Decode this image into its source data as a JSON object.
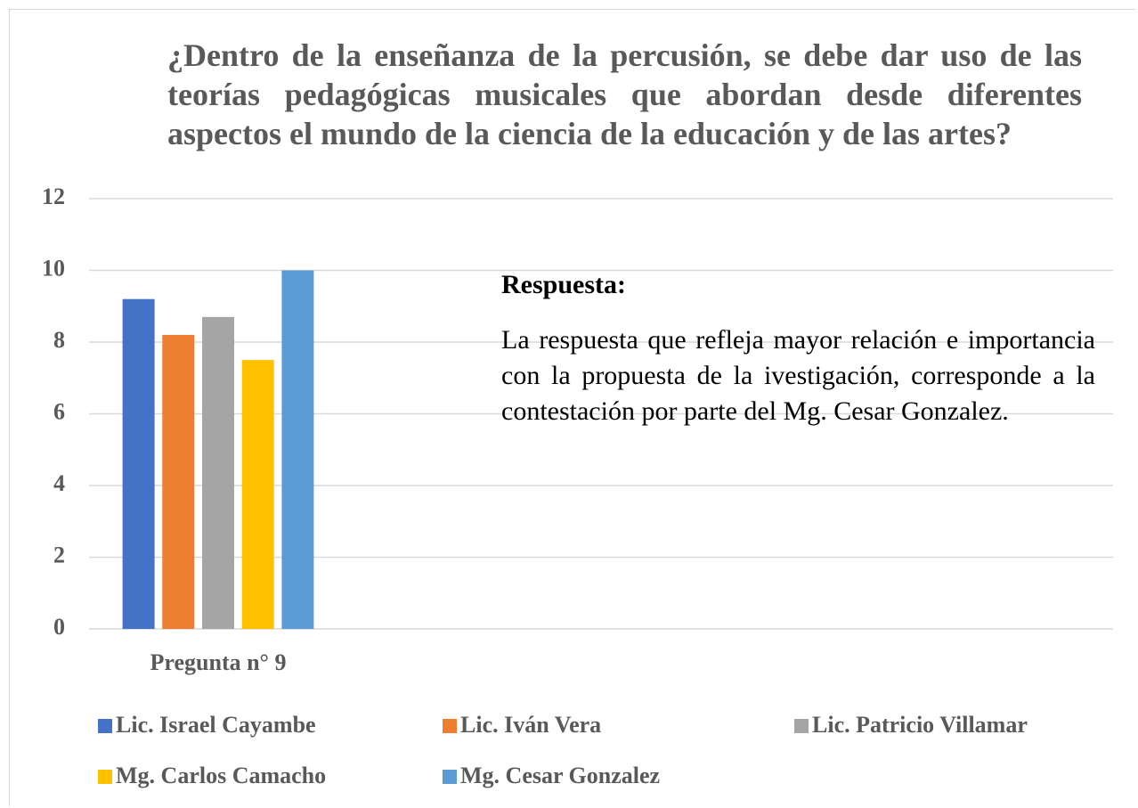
{
  "chart_data": {
    "type": "bar",
    "title": "¿Dentro de la enseñanza de la percusión, se debe dar uso de las teorías pedagógicas musicales que abordan desde diferentes aspectos el mundo de la ciencia de la educación y de las artes?",
    "categories": [
      "Pregunta n° 9"
    ],
    "series": [
      {
        "name": "Lic. Israel Cayambe",
        "color": "#4472c4",
        "values": [
          9.2
        ]
      },
      {
        "name": "Lic. Iván Vera",
        "color": "#ed7d31",
        "values": [
          8.2
        ]
      },
      {
        "name": "Lic. Patricio Villamar",
        "color": "#a5a5a5",
        "values": [
          8.7
        ]
      },
      {
        "name": "Mg. Carlos Camacho",
        "color": "#ffc000",
        "values": [
          7.5
        ]
      },
      {
        "name": "Mg. Cesar Gonzalez",
        "color": "#5b9bd5",
        "values": [
          10
        ]
      }
    ],
    "ylim": [
      0,
      12
    ],
    "yticks": [
      0,
      2,
      4,
      6,
      8,
      10,
      12
    ],
    "grid": true,
    "legend": "bottom",
    "annotation_title": "Respuesta:",
    "annotation_text": "La respuesta que refleja mayor relación e importancia con la propuesta de la ivestigación, corresponde a la contestación por parte del Mg. Cesar Gonzalez."
  }
}
